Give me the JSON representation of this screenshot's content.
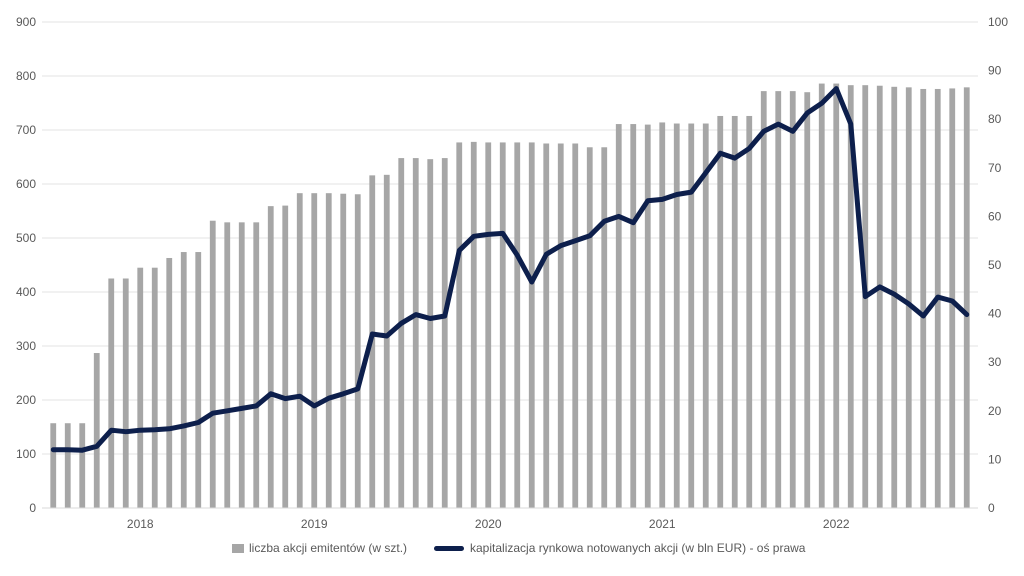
{
  "chart_data": {
    "type": "bar+line",
    "title": "",
    "categories_note": "monthly, Jul 2017 - Sep 2022",
    "year_labels": [
      "2018",
      "2019",
      "2020",
      "2021",
      "2022"
    ],
    "left_axis": {
      "min": 0,
      "max": 900,
      "step": 100,
      "ticks": [
        "0",
        "100",
        "200",
        "300",
        "400",
        "500",
        "600",
        "700",
        "800",
        "900"
      ]
    },
    "right_axis": {
      "min": 0,
      "max": 100,
      "step": 10,
      "ticks": [
        "0",
        "10",
        "20",
        "30",
        "40",
        "50",
        "60",
        "70",
        "80",
        "90",
        "100"
      ]
    },
    "series": [
      {
        "name": "liczba akcji emitentów (w szt.)",
        "type": "bar",
        "axis": "left",
        "color": "#a6a6a6",
        "values": [
          157,
          157,
          157,
          287,
          425,
          425,
          445,
          445,
          463,
          474,
          474,
          532,
          529,
          529,
          529,
          559,
          560,
          583,
          583,
          583,
          582,
          581,
          616,
          617,
          648,
          648,
          646,
          648,
          677,
          678,
          677,
          677,
          677,
          677,
          675,
          675,
          675,
          668,
          668,
          711,
          711,
          710,
          714,
          712,
          712,
          712,
          726,
          726,
          726,
          772,
          772,
          772,
          770,
          786,
          786,
          783,
          783,
          782,
          780,
          779,
          776,
          776,
          777,
          779
        ],
        "values_note": "bars are quarterly-ish plateaus read from the figure"
      },
      {
        "name": "kapitalizacja rynkowa notowanych akcji (w bln EUR) - oś prawa",
        "type": "line",
        "axis": "right",
        "color": "#0d1f4c",
        "values": [
          12.0,
          12.0,
          11.9,
          12.7,
          16.0,
          15.7,
          16.0,
          16.1,
          16.3,
          16.9,
          17.6,
          19.5,
          20.0,
          20.5,
          21.0,
          23.5,
          22.5,
          23.0,
          21.0,
          22.6,
          23.5,
          24.5,
          35.8,
          35.4,
          38.0,
          39.8,
          39.0,
          39.5,
          53.0,
          55.9,
          56.3,
          56.5,
          52.0,
          46.5,
          52.2,
          54.0,
          55.0,
          56.0,
          59.0,
          60.0,
          58.7,
          63.2,
          63.5,
          64.5,
          65.0,
          69.0,
          73.0,
          72.0,
          74.0,
          77.5,
          79.0,
          77.5,
          81.3,
          83.3,
          86.3,
          79.0,
          43.5,
          45.5,
          44.0,
          42.0,
          39.5,
          43.4,
          42.6,
          39.8
        ]
      }
    ],
    "gridlines": true,
    "legend_position": "bottom"
  }
}
